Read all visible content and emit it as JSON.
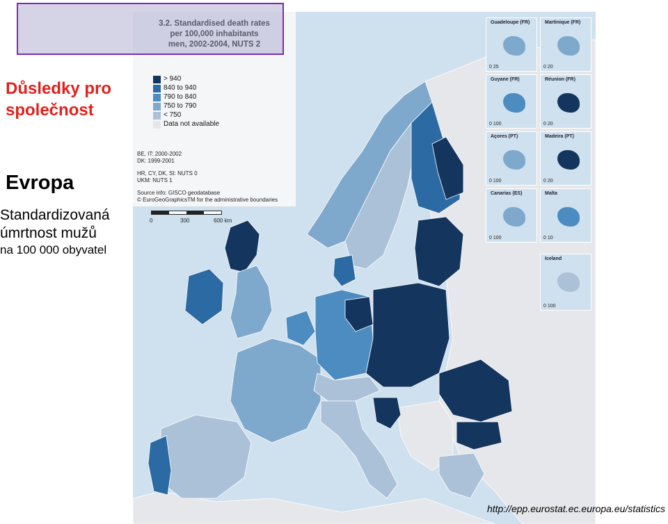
{
  "slide": {
    "title_line1": "Důsledky pro",
    "title_line2": "společnost",
    "region": "Evropa",
    "subtitle_line1": "Standardizovaná",
    "subtitle_line2": "úmrtnost mužů",
    "subtitle_line3": "na 100 000 obyvatel",
    "source_url": "http://epp.eurostat.ec.europa.eu/statistics"
  },
  "map": {
    "title_line1": "3.2. Standardised death rates",
    "title_line2": "per 100,000 inhabitants",
    "title_line3": "men, 2002-2004, NUTS 2",
    "legend": [
      {
        "label": "> 940",
        "color": "#14365e"
      },
      {
        "label": "840 to 940",
        "color": "#2c6aa3"
      },
      {
        "label": "790 to 840",
        "color": "#4d8cc0"
      },
      {
        "label": "750 to 790",
        "color": "#7ea9cc"
      },
      {
        "label": "< 750",
        "color": "#aac1d8"
      },
      {
        "label": "Data not available",
        "color": "#e6e7ea"
      }
    ],
    "notes": {
      "line1": "BE, IT: 2000-2002",
      "line2": "DK: 1999-2001",
      "line3": "HR, CY, DK, SI: NUTS 0",
      "line4": "UKM: NUTS 1",
      "line5": "Source info: GISCO geodatabase",
      "line6": "© EuroGeoGraphicsTM for the administrative boundaries"
    },
    "scale": {
      "s0": "0",
      "s1": "300",
      "s2": "600 km"
    },
    "insets": [
      {
        "name": "Guadeloupe (FR)",
        "scale": "0  25"
      },
      {
        "name": "Martinique (FR)",
        "scale": "0  20"
      },
      {
        "name": "Guyane (FR)",
        "scale": "0 100"
      },
      {
        "name": "Réunion (FR)",
        "scale": "0  20"
      },
      {
        "name": "Açores (PT)",
        "scale": "0    100"
      },
      {
        "name": "Madeira (PT)",
        "scale": "0  20"
      },
      {
        "name": "Canarias (ES)",
        "scale": "0 100"
      },
      {
        "name": "Malta",
        "scale": "0   10"
      },
      {
        "name": "Iceland",
        "scale": "0 100"
      }
    ],
    "colors": {
      "sea": "#cfe0ee",
      "nodata": "#e6e7ea",
      "border": "#ffffff"
    }
  }
}
